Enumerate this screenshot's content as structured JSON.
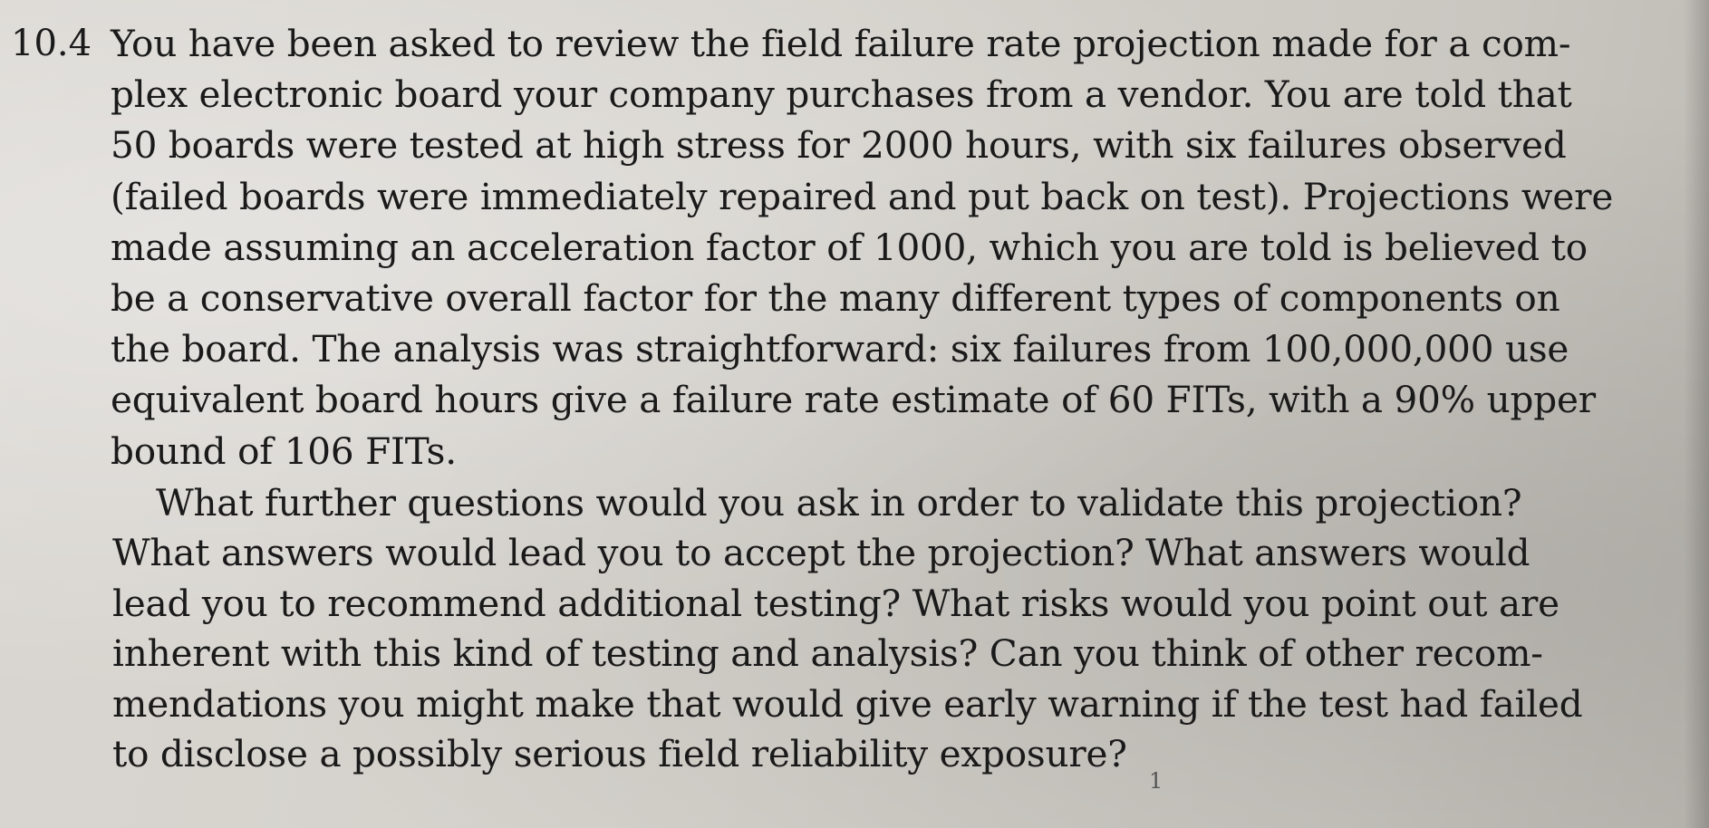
{
  "problem": {
    "number": "10.4",
    "paragraph1": [
      "You have been asked to review the field failure rate projection made for a com-",
      "plex electronic board your company purchases from a vendor. You are told that",
      "50 boards were tested at high stress for 2000 hours, with six failures observed",
      "(failed boards were immediately repaired and put back on test). Projections were",
      "made assuming an acceleration factor of 1000, which you are told is believed to",
      "be a conservative overall factor for the many different types of components on",
      "the board. The analysis was straightforward: six failures from 100,000,000 use",
      "equivalent board hours give a failure rate estimate of 60 FITs, with a 90% upper",
      "bound of 106 FITs."
    ],
    "paragraph2": [
      "What further questions would you ask in order to validate this projection?",
      "What answers would lead you to accept the projection? What answers would",
      "lead you to recommend additional testing? What risks would you point out are",
      "inherent with this kind of testing and analysis? Can you think of other recom-",
      "mendations you might make that would give early warning if the test had failed",
      "to disclose a possibly serious field reliability exposure?"
    ]
  },
  "pencil_mark": "1"
}
